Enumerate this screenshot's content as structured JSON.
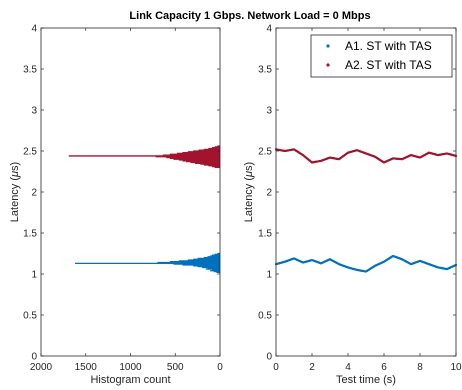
{
  "figure": {
    "title": "Link Capacity 1 Gbps.  Network Load = 0 Mbps"
  },
  "chart_data": [
    {
      "type": "histogram",
      "orientation": "horizontal",
      "xlabel": "Histogram count",
      "ylabel_prefix": "Latency (",
      "ylabel_mu": "μ",
      "ylabel_suffix": "s)",
      "xlim": [
        2000,
        0
      ],
      "xticks": [
        2000,
        1500,
        1000,
        500,
        0
      ],
      "ylim": [
        0,
        4
      ],
      "yticks": [
        0,
        0.5,
        1,
        1.5,
        2,
        2.5,
        3,
        3.5,
        4
      ],
      "series": [
        {
          "name": "A1. ST with TAS",
          "color": "#0072BD",
          "bins": [
            [
              1.02,
              40
            ],
            [
              1.03,
              70
            ],
            [
              1.04,
              110
            ],
            [
              1.05,
              90
            ],
            [
              1.06,
              160
            ],
            [
              1.07,
              140
            ],
            [
              1.08,
              200
            ],
            [
              1.09,
              250
            ],
            [
              1.1,
              300
            ],
            [
              1.11,
              420
            ],
            [
              1.12,
              520
            ],
            [
              1.13,
              1620
            ],
            [
              1.14,
              700
            ],
            [
              1.15,
              560
            ],
            [
              1.16,
              460
            ],
            [
              1.17,
              360
            ],
            [
              1.18,
              300
            ],
            [
              1.19,
              250
            ],
            [
              1.2,
              180
            ],
            [
              1.21,
              140
            ],
            [
              1.22,
              110
            ],
            [
              1.23,
              90
            ],
            [
              1.24,
              60
            ],
            [
              1.25,
              30
            ]
          ]
        },
        {
          "name": "A2. ST with TAS",
          "color": "#A2142F",
          "bins": [
            [
              2.3,
              60
            ],
            [
              2.31,
              90
            ],
            [
              2.32,
              130
            ],
            [
              2.33,
              180
            ],
            [
              2.34,
              220
            ],
            [
              2.35,
              280
            ],
            [
              2.36,
              330
            ],
            [
              2.37,
              380
            ],
            [
              2.38,
              420
            ],
            [
              2.39,
              460
            ],
            [
              2.4,
              520
            ],
            [
              2.41,
              560
            ],
            [
              2.42,
              600
            ],
            [
              2.43,
              720
            ],
            [
              2.44,
              1690
            ],
            [
              2.45,
              640
            ],
            [
              2.46,
              560
            ],
            [
              2.47,
              480
            ],
            [
              2.48,
              420
            ],
            [
              2.49,
              360
            ],
            [
              2.5,
              300
            ],
            [
              2.51,
              240
            ],
            [
              2.52,
              180
            ],
            [
              2.53,
              130
            ],
            [
              2.54,
              90
            ],
            [
              2.55,
              60
            ],
            [
              2.56,
              30
            ]
          ]
        }
      ]
    },
    {
      "type": "scatter",
      "xlabel": "Test time (s)",
      "ylabel_prefix": "Latency (",
      "ylabel_mu": "μ",
      "ylabel_suffix": "s)",
      "xlim": [
        0,
        10
      ],
      "xticks": [
        0,
        2,
        4,
        6,
        8,
        10
      ],
      "ylim": [
        0,
        4
      ],
      "yticks": [
        0,
        0.5,
        1,
        1.5,
        2,
        2.5,
        3,
        3.5,
        4
      ],
      "legend_position": "top-right",
      "series": [
        {
          "name": "A1. ST with TAS",
          "color": "#0072BD",
          "x": [
            0,
            0.5,
            1.0,
            1.5,
            2.0,
            2.5,
            3.0,
            3.5,
            4.0,
            4.5,
            5.0,
            5.5,
            6.0,
            6.5,
            7.0,
            7.5,
            8.0,
            8.5,
            9.0,
            9.5,
            10.0
          ],
          "y": [
            1.12,
            1.15,
            1.19,
            1.14,
            1.17,
            1.13,
            1.18,
            1.12,
            1.08,
            1.05,
            1.03,
            1.1,
            1.15,
            1.22,
            1.18,
            1.12,
            1.16,
            1.12,
            1.08,
            1.06,
            1.11
          ]
        },
        {
          "name": "A2. ST with TAS",
          "color": "#A2142F",
          "x": [
            0,
            0.5,
            1.0,
            1.5,
            2.0,
            2.5,
            3.0,
            3.5,
            4.0,
            4.5,
            5.0,
            5.5,
            6.0,
            6.5,
            7.0,
            7.5,
            8.0,
            8.5,
            9.0,
            9.5,
            10.0
          ],
          "y": [
            2.52,
            2.5,
            2.52,
            2.45,
            2.36,
            2.38,
            2.42,
            2.4,
            2.48,
            2.51,
            2.47,
            2.43,
            2.36,
            2.41,
            2.4,
            2.45,
            2.42,
            2.48,
            2.45,
            2.47,
            2.44
          ]
        }
      ]
    }
  ]
}
